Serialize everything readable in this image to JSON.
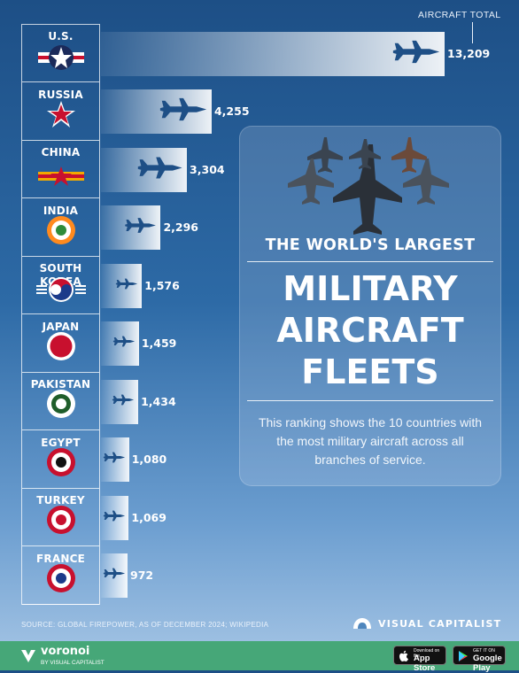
{
  "chart_data": {
    "type": "bar",
    "orientation": "horizontal",
    "value_header": "AIRCRAFT TOTAL",
    "categories": [
      "U.S.",
      "RUSSIA",
      "CHINA",
      "INDIA",
      "SOUTH KOREA",
      "JAPAN",
      "PAKISTAN",
      "EGYPT",
      "TURKEY",
      "FRANCE"
    ],
    "category_lines": [
      [
        "U.S."
      ],
      [
        "RUSSIA"
      ],
      [
        "CHINA"
      ],
      [
        "INDIA"
      ],
      [
        "SOUTH",
        "KOREA"
      ],
      [
        "JAPAN"
      ],
      [
        "PAKISTAN"
      ],
      [
        "EGYPT"
      ],
      [
        "TURKEY"
      ],
      [
        "FRANCE"
      ]
    ],
    "values": [
      13209,
      4255,
      3304,
      2296,
      1576,
      1459,
      1434,
      1080,
      1069,
      972
    ],
    "value_labels": [
      "13,209",
      "4,255",
      "3,304",
      "2,296",
      "1,576",
      "1,459",
      "1,434",
      "1,080",
      "1,069",
      "972"
    ],
    "flags": [
      "us-roundel-icon",
      "russia-star-icon",
      "china-roundel-icon",
      "india-roundel-icon",
      "south-korea-roundel-icon",
      "japan-roundel-icon",
      "pakistan-roundel-icon",
      "egypt-roundel-icon",
      "turkey-roundel-icon",
      "france-roundel-icon"
    ],
    "xlim": [
      0,
      13209
    ],
    "grid": false,
    "legend": "none"
  },
  "panel": {
    "subtitle": "THE WORLD'S LARGEST",
    "title_lines": [
      "MILITARY",
      "AIRCRAFT",
      "FLEETS"
    ],
    "description": "This ranking shows the 10 countries with the most military aircraft across all branches of service."
  },
  "source": "SOURCE: GLOBAL FIREPOWER, AS OF DECEMBER 2024; WIKIPEDIA",
  "brand": "VISUAL CAPITALIST",
  "footer": {
    "name": "voronoi",
    "tagline": "BY VISUAL CAPITALIST",
    "app_store_small": "Download on the",
    "app_store": "App Store",
    "google_play_small": "GET IT ON",
    "google_play": "Google Play"
  },
  "colors": {
    "bg_top": "#1d4f86",
    "bg_bottom": "#a8c7e6",
    "footer": "#46a778",
    "plane": "#1e4f86"
  }
}
